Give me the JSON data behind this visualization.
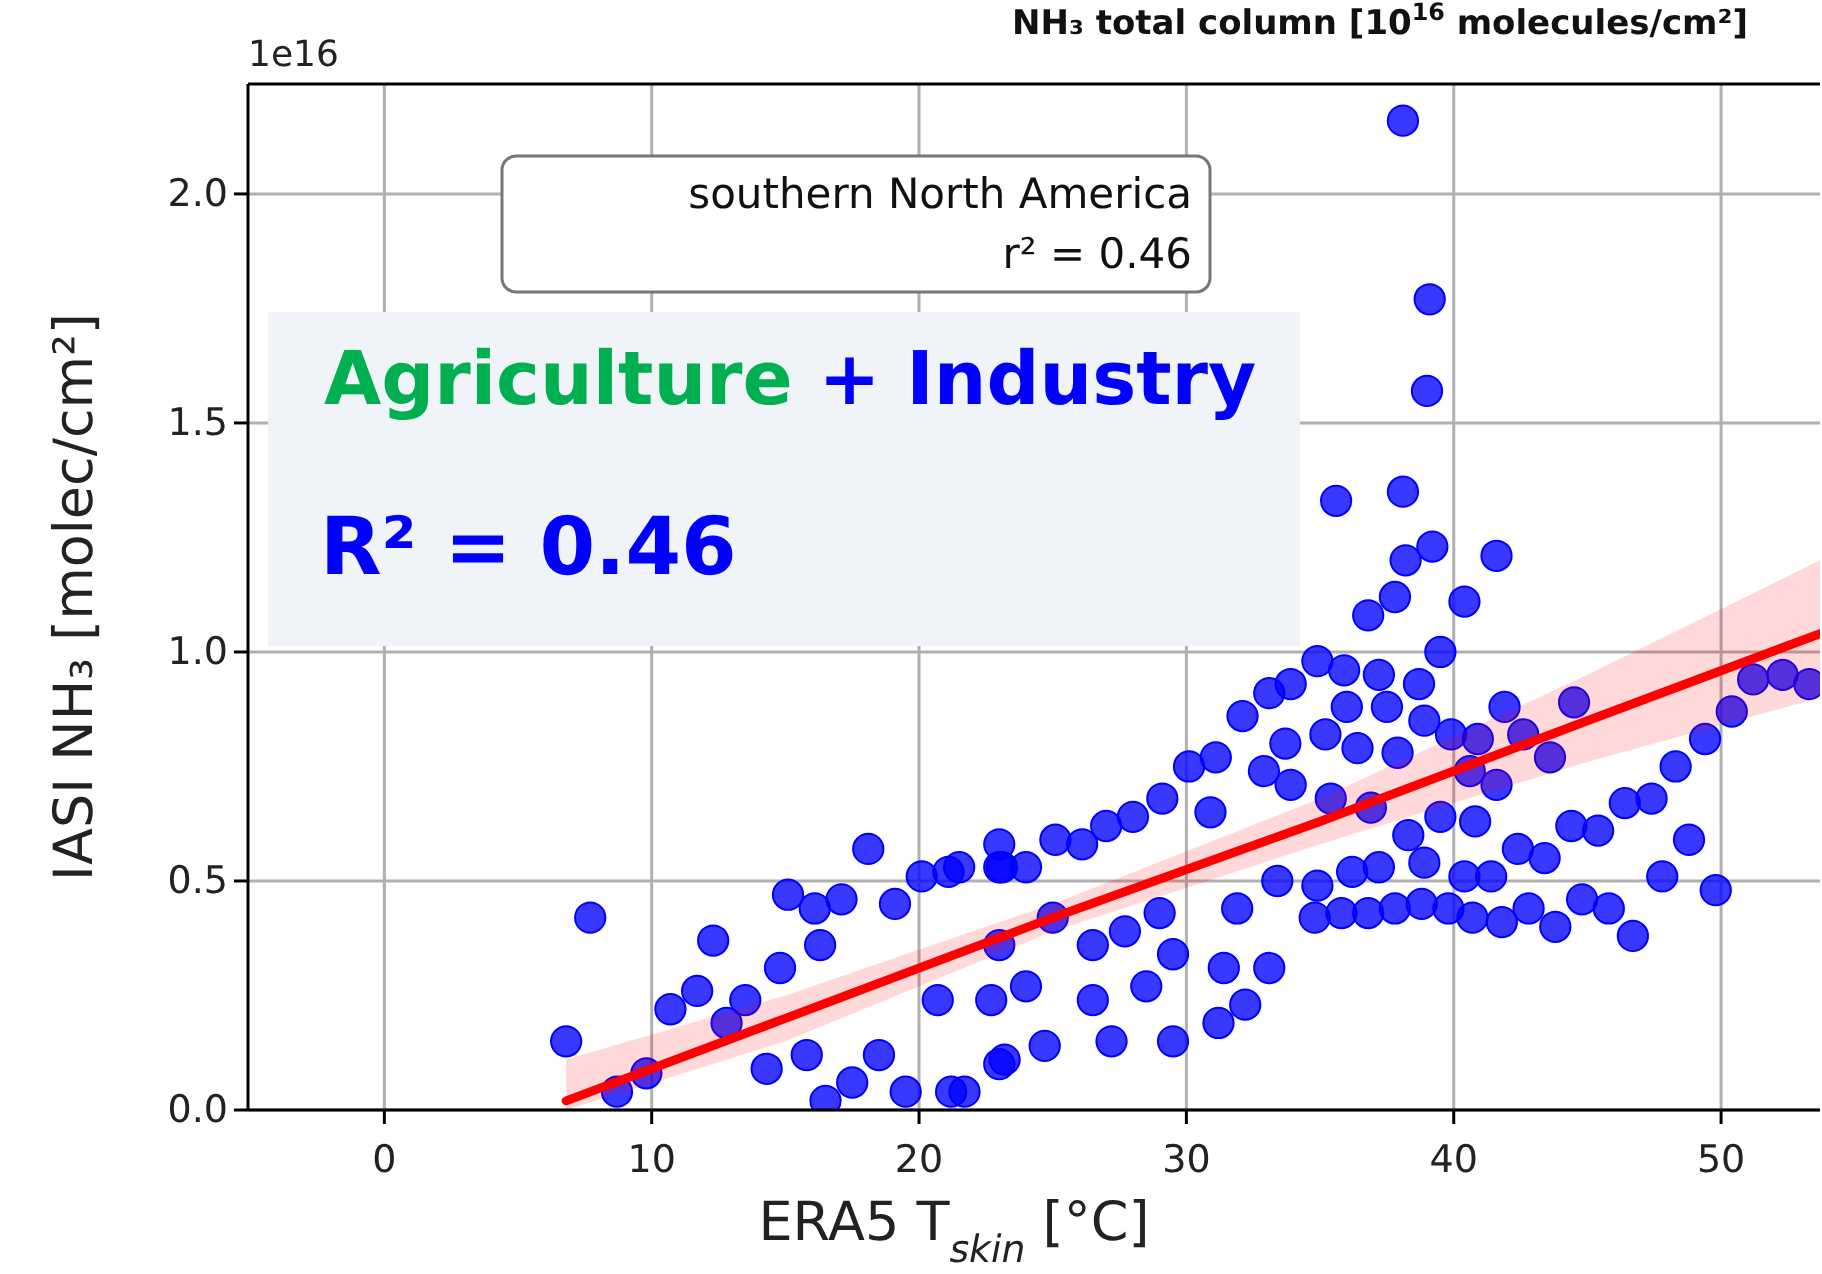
{
  "chart_data": {
    "type": "scatter",
    "title": "NH₃ total column [10$^{16}$ molecules/cm²]",
    "xlabel": "ERA5 T$_{skin}$ [°C]",
    "ylabel": "IASI NH₃ [molec/cm²]",
    "annotations": [
      "southern North America",
      "r² = 0.46",
      "Agriculture",
      "+ Industry",
      "R² = 0.46",
      "1e16"
    ],
    "xlim": [
      -5.1,
      53.7
    ],
    "xticks": [
      0,
      10,
      20,
      30,
      40,
      50
    ],
    "ylim": [
      0,
      2.24
    ],
    "yticks": [
      {
        "value": 0,
        "label": "0.0"
      },
      {
        "value": 0.5,
        "label": "0.5"
      },
      {
        "value": 1,
        "label": "1.0"
      },
      {
        "value": 1.5,
        "label": "1.5"
      },
      {
        "value": 2,
        "label": "2.0"
      }
    ],
    "grid": true,
    "series": [
      {
        "marker": "circle",
        "color": "#0000ff",
        "x": [
          6.8,
          7.7,
          8.7,
          9.8,
          10.7,
          11.7,
          12.3,
          12.8,
          13.5,
          14.8,
          15.1,
          16.1,
          17.1,
          18.1,
          19.1,
          20.1,
          21.1,
          23.1,
          16.3,
          15.8,
          14.3,
          17.5,
          16.5,
          19.5,
          21.2,
          18.5,
          20.7,
          23.2,
          35.6,
          38.1,
          39.2,
          38.2,
          41.6,
          36.8,
          37.8,
          40.4,
          39.5,
          34.9,
          35.9,
          37.2,
          38.7,
          33.1,
          33.9,
          32.1,
          37.5,
          38.9,
          39.9,
          40.9,
          41.9,
          44.5,
          42.6,
          43.6,
          41.6,
          40.6,
          37.9,
          35.2,
          33.7,
          30.1,
          31.1,
          32.9,
          29.1,
          30.9,
          28.0,
          25.1,
          26.1,
          36.9,
          39.5,
          40.8,
          38.3,
          44.4,
          45.4,
          46.4,
          47.4,
          48.3,
          49.4,
          50.4,
          51.2,
          52.3,
          53.3,
          48.8,
          47.8,
          49.8,
          42.4,
          43.4,
          41.4,
          40.4,
          38.9,
          44.8,
          45.8,
          46.7,
          42.8,
          43.8,
          41.8,
          40.7,
          39.8,
          38.8,
          37.8,
          36.8,
          35.8,
          34.8,
          36.4,
          36.0,
          37.2,
          36.2,
          21.5,
          24.0,
          23.0,
          25.0,
          27.7,
          29.5,
          31.4,
          32.2,
          33.1,
          31.2,
          29.5,
          27.2,
          24.7,
          23.0,
          21.7,
          26.5,
          28.5,
          24.0,
          22.7,
          26.5,
          23.0,
          29.0,
          31.9,
          33.4,
          34.9,
          35.4,
          33.9,
          27.0,
          23.0,
          38.1,
          39.1,
          39.0
        ],
        "values": [
          0.15,
          0.42,
          0.04,
          0.08,
          0.22,
          0.26,
          0.37,
          0.19,
          0.24,
          0.31,
          0.47,
          0.44,
          0.46,
          0.57,
          0.45,
          0.51,
          0.52,
          0.53,
          0.36,
          0.12,
          0.09,
          0.06,
          0.02,
          0.04,
          0.04,
          0.12,
          0.24,
          0.11,
          1.33,
          1.35,
          1.23,
          1.2,
          1.21,
          1.08,
          1.12,
          1.11,
          1.0,
          0.98,
          0.96,
          0.95,
          0.93,
          0.91,
          0.93,
          0.86,
          0.88,
          0.85,
          0.82,
          0.81,
          0.88,
          0.89,
          0.82,
          0.77,
          0.71,
          0.74,
          0.78,
          0.82,
          0.8,
          0.75,
          0.77,
          0.74,
          0.68,
          0.65,
          0.64,
          0.59,
          0.58,
          0.66,
          0.64,
          0.63,
          0.6,
          0.62,
          0.61,
          0.67,
          0.68,
          0.75,
          0.81,
          0.87,
          0.94,
          0.95,
          0.93,
          0.59,
          0.51,
          0.48,
          0.57,
          0.55,
          0.51,
          0.51,
          0.54,
          0.46,
          0.44,
          0.38,
          0.44,
          0.4,
          0.41,
          0.42,
          0.44,
          0.45,
          0.44,
          0.43,
          0.43,
          0.42,
          0.79,
          0.88,
          0.53,
          0.52,
          0.53,
          0.53,
          0.53,
          0.42,
          0.39,
          0.34,
          0.31,
          0.23,
          0.31,
          0.19,
          0.15,
          0.15,
          0.14,
          0.1,
          0.04,
          0.24,
          0.27,
          0.27,
          0.24,
          0.36,
          0.36,
          0.43,
          0.44,
          0.5,
          0.49,
          0.68,
          0.71,
          0.62,
          0.58,
          2.16,
          1.77,
          1.57
        ]
      },
      {
        "type": "line",
        "color": "#ff0000",
        "x": [
          6.8,
          15,
          25,
          35,
          45,
          53.7
        ],
        "values": [
          0.02,
          0.2,
          0.42,
          0.63,
          0.85,
          1.04
        ],
        "lower": [
          0.0,
          0.15,
          0.39,
          0.58,
          0.76,
          0.9
        ],
        "upper": [
          0.11,
          0.25,
          0.45,
          0.68,
          0.95,
          1.2
        ]
      }
    ]
  }
}
